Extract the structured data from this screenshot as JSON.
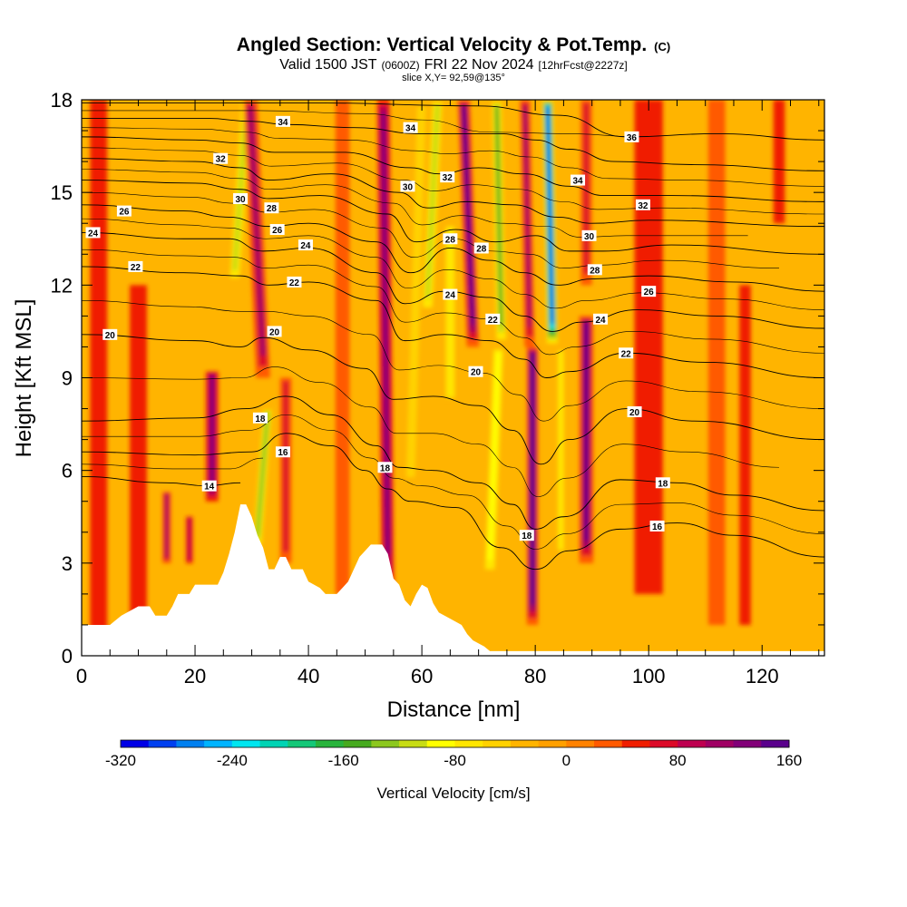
{
  "header": {
    "title": "Angled Section: Vertical Velocity & Pot.Temp.",
    "title_suffix": "(C)",
    "valid_prefix": "Valid 1500 JST",
    "valid_utc": "(0600Z)",
    "valid_date": "FRI 22 Nov 2024",
    "forecast": "[12hrFcst@2227z]",
    "slice": "slice X,Y= 92,59@135°"
  },
  "chart_data": {
    "type": "heatmap",
    "xlabel": "Distance [nm]",
    "ylabel": "Height [Kft MSL]",
    "xlim": [
      0,
      131
    ],
    "ylim": [
      0,
      18
    ],
    "x_ticks": [
      0,
      20,
      40,
      60,
      80,
      100,
      120
    ],
    "y_ticks": [
      0,
      3,
      6,
      9,
      12,
      15,
      18
    ],
    "colorbar": {
      "label": "Vertical Velocity [cm/s]",
      "min": -320,
      "max": 180,
      "step": 20,
      "tick_values": [
        -320,
        -240,
        -160,
        -80,
        0,
        80,
        160
      ],
      "colors": [
        "#0000e6",
        "#0040f0",
        "#0080f0",
        "#00b4ff",
        "#00e6f0",
        "#00d4b4",
        "#14c878",
        "#28b43c",
        "#46aa1e",
        "#8cc81e",
        "#c8dc14",
        "#ffff00",
        "#ffe600",
        "#ffd200",
        "#ffb400",
        "#ffa000",
        "#ff8200",
        "#ff5a00",
        "#f01e00",
        "#dc0a28",
        "#be0050",
        "#a00064",
        "#820078",
        "#5a008c"
      ]
    },
    "terrain_profile": [
      [
        0,
        1
      ],
      [
        5,
        1
      ],
      [
        7,
        1.3
      ],
      [
        10,
        1.6
      ],
      [
        12,
        1.6
      ],
      [
        13,
        1.3
      ],
      [
        15,
        1.3
      ],
      [
        16,
        1.6
      ],
      [
        17,
        2
      ],
      [
        19,
        2
      ],
      [
        20,
        2.3
      ],
      [
        24,
        2.3
      ],
      [
        25,
        2.7
      ],
      [
        26,
        3.3
      ],
      [
        27,
        4
      ],
      [
        28,
        4.9
      ],
      [
        29,
        4.9
      ],
      [
        30,
        4.5
      ],
      [
        31,
        3.9
      ],
      [
        32,
        3.5
      ],
      [
        33,
        2.8
      ],
      [
        34,
        2.8
      ],
      [
        35,
        3.2
      ],
      [
        36,
        3.2
      ],
      [
        37,
        2.8
      ],
      [
        39,
        2.8
      ],
      [
        40,
        2.4
      ],
      [
        42,
        2.2
      ],
      [
        43,
        2
      ],
      [
        45,
        2
      ],
      [
        46,
        2.2
      ],
      [
        47,
        2.4
      ],
      [
        48,
        2.8
      ],
      [
        49,
        3.2
      ],
      [
        50,
        3.4
      ],
      [
        51,
        3.6
      ],
      [
        53,
        3.6
      ],
      [
        54,
        3.3
      ],
      [
        55,
        2.5
      ],
      [
        56,
        2.3
      ],
      [
        57,
        1.8
      ],
      [
        58,
        1.6
      ],
      [
        59,
        2
      ],
      [
        60,
        2.3
      ],
      [
        61,
        2.2
      ],
      [
        62,
        1.7
      ],
      [
        63,
        1.4
      ],
      [
        65,
        1.2
      ],
      [
        67,
        1
      ],
      [
        68,
        0.7
      ],
      [
        69,
        0.5
      ],
      [
        71,
        0.3
      ],
      [
        72,
        0.15
      ],
      [
        131,
        0.15
      ]
    ],
    "velocity_features": [
      {
        "x": 3,
        "width": 3,
        "y_low": 0.5,
        "y_high": 18,
        "value": 40
      },
      {
        "x": 10,
        "width": 3,
        "y_low": 1.2,
        "y_high": 12,
        "value": 40
      },
      {
        "x": 15,
        "width": 1.5,
        "y_low": 3,
        "y_high": 5.3,
        "value": 100
      },
      {
        "x": 19,
        "width": 1.2,
        "y_low": 3,
        "y_high": 4.5,
        "value": 80
      },
      {
        "x": 23,
        "width": 2.2,
        "y_low": 5,
        "y_high": 9.2,
        "value": 120
      },
      {
        "x": 27,
        "width": 2.5,
        "y_low": 12,
        "y_high": 18,
        "value": -120,
        "slant": 0.35
      },
      {
        "x": 31,
        "width": 2,
        "y_low": 3.5,
        "y_high": 8,
        "value": -140,
        "slant": 0.4
      },
      {
        "x": 32,
        "width": 2.5,
        "y_low": 9,
        "y_high": 18,
        "value": 100,
        "slant": -0.25
      },
      {
        "x": 36,
        "width": 2,
        "y_low": 3,
        "y_high": 9,
        "value": 60
      },
      {
        "x": 46,
        "width": 2.5,
        "y_low": 2,
        "y_high": 18,
        "value": 20
      },
      {
        "x": 54,
        "width": 2.2,
        "y_low": 2,
        "y_high": 18,
        "value": 120,
        "slant": -0.05
      },
      {
        "x": 58,
        "width": 3,
        "y_low": 5,
        "y_high": 18,
        "value": -60,
        "slant": 0.15
      },
      {
        "x": 61,
        "width": 2.5,
        "y_low": 11,
        "y_high": 18,
        "value": -120,
        "slant": 0.25
      },
      {
        "x": 65,
        "width": 3,
        "y_low": 8,
        "y_high": 14,
        "value": -80
      },
      {
        "x": 69,
        "width": 2.2,
        "y_low": 10,
        "y_high": 18,
        "value": 140,
        "slant": -0.2
      },
      {
        "x": 72,
        "width": 2.5,
        "y_low": 2.5,
        "y_high": 10,
        "value": -100,
        "slant": 0.2
      },
      {
        "x": 74,
        "width": 2.2,
        "y_low": 10,
        "y_high": 18,
        "value": -160,
        "slant": -0.1
      },
      {
        "x": 79.5,
        "width": 2,
        "y_low": 1,
        "y_high": 10,
        "value": 180
      },
      {
        "x": 79,
        "width": 1.8,
        "y_low": 10,
        "y_high": 18,
        "value": 100,
        "slant": -0.1
      },
      {
        "x": 83,
        "width": 2.2,
        "y_low": 10,
        "y_high": 18,
        "value": -320,
        "slant": -0.1
      },
      {
        "x": 84.5,
        "width": 2,
        "y_low": 3,
        "y_high": 10,
        "value": -80
      },
      {
        "x": 89,
        "width": 2.5,
        "y_low": 3,
        "y_high": 11,
        "value": 140
      },
      {
        "x": 89,
        "width": 2,
        "y_low": 12,
        "y_high": 18,
        "value": 60
      },
      {
        "x": 100,
        "width": 5,
        "y_low": 2,
        "y_high": 18,
        "value": 40
      },
      {
        "x": 112,
        "width": 3,
        "y_low": 1,
        "y_high": 18,
        "value": 30
      },
      {
        "x": 117,
        "width": 2,
        "y_low": 1,
        "y_high": 12,
        "value": 40
      },
      {
        "x": 123,
        "width": 2,
        "y_low": 14,
        "y_high": 18,
        "value": 40
      }
    ],
    "isentropes": [
      {
        "theta": 14,
        "points": [
          [
            0,
            5.8
          ],
          [
            15,
            5.6
          ],
          [
            22,
            5.5
          ],
          [
            28,
            5.6
          ]
        ]
      },
      {
        "theta": 16,
        "points": [
          [
            0,
            6.6
          ],
          [
            20,
            6.5
          ],
          [
            30,
            6.6
          ],
          [
            36,
            7.2
          ],
          [
            44,
            6.8
          ],
          [
            50,
            6
          ],
          [
            54,
            5.4
          ],
          [
            58,
            5
          ],
          [
            66,
            4.8
          ],
          [
            74,
            3.5
          ],
          [
            80,
            2.8
          ],
          [
            86,
            3.4
          ],
          [
            95,
            4.1
          ],
          [
            105,
            4.3
          ],
          [
            115,
            3.9
          ],
          [
            131,
            3.2
          ]
        ]
      },
      {
        "theta": 18,
        "points": [
          [
            0,
            7.6
          ],
          [
            20,
            7.7
          ],
          [
            29,
            8
          ],
          [
            36,
            8.4
          ],
          [
            44,
            7.8
          ],
          [
            52,
            6.8
          ],
          [
            56,
            6.1
          ],
          [
            62,
            6
          ],
          [
            70,
            5.6
          ],
          [
            76,
            4.9
          ],
          [
            80,
            4.1
          ],
          [
            85,
            4.5
          ],
          [
            95,
            5.7
          ],
          [
            105,
            5.6
          ],
          [
            115,
            5.2
          ],
          [
            131,
            4.7
          ]
        ]
      },
      {
        "theta": 20,
        "points": [
          [
            0,
            10.4
          ],
          [
            20,
            10.2
          ],
          [
            28,
            10
          ],
          [
            32,
            10.3
          ],
          [
            40,
            9.9
          ],
          [
            50,
            9.3
          ],
          [
            55,
            8.3
          ],
          [
            62,
            8.4
          ],
          [
            70,
            8.1
          ],
          [
            76,
            7.3
          ],
          [
            81,
            6.2
          ],
          [
            86,
            7
          ],
          [
            96,
            8
          ],
          [
            108,
            7.6
          ],
          [
            131,
            7
          ]
        ]
      },
      {
        "theta": 22,
        "points": [
          [
            0,
            12.6
          ],
          [
            18,
            12.4
          ],
          [
            28,
            12.3
          ],
          [
            33,
            12
          ],
          [
            40,
            12.1
          ],
          [
            52,
            11.5
          ],
          [
            57,
            10.2
          ],
          [
            64,
            10.4
          ],
          [
            72,
            10.2
          ],
          [
            78,
            9.6
          ],
          [
            82,
            9
          ],
          [
            86,
            9.2
          ],
          [
            96,
            9.8
          ],
          [
            110,
            9.5
          ],
          [
            131,
            9
          ]
        ]
      },
      {
        "theta": 24,
        "points": [
          [
            0,
            13.7
          ],
          [
            18,
            13.5
          ],
          [
            26,
            13.5
          ],
          [
            32,
            13.1
          ],
          [
            40,
            13.2
          ],
          [
            52,
            12.4
          ],
          [
            57,
            11.4
          ],
          [
            64,
            11.8
          ],
          [
            72,
            11.6
          ],
          [
            78,
            11
          ],
          [
            83,
            10.5
          ],
          [
            88,
            10.8
          ],
          [
            98,
            11.2
          ],
          [
            112,
            11
          ],
          [
            131,
            10.6
          ]
        ]
      },
      {
        "theta": 26,
        "points": [
          [
            0,
            14.6
          ],
          [
            18,
            14.4
          ],
          [
            26,
            14.2
          ],
          [
            33,
            13.9
          ],
          [
            40,
            14
          ],
          [
            52,
            13.4
          ],
          [
            58,
            12.4
          ],
          [
            65,
            13.2
          ],
          [
            72,
            12.8
          ],
          [
            78,
            12.4
          ],
          [
            84,
            12
          ],
          [
            90,
            12.2
          ],
          [
            100,
            12.3
          ],
          [
            115,
            12.1
          ],
          [
            131,
            11.8
          ]
        ]
      },
      {
        "theta": 28,
        "points": [
          [
            0,
            15.4
          ],
          [
            20,
            15.3
          ],
          [
            28,
            15.1
          ],
          [
            33,
            14.8
          ],
          [
            42,
            14.9
          ],
          [
            54,
            14.3
          ],
          [
            59,
            13.4
          ],
          [
            66,
            13.8
          ],
          [
            73,
            13.4
          ],
          [
            80,
            13.6
          ],
          [
            86,
            13.1
          ],
          [
            92,
            13.1
          ],
          [
            104,
            13.3
          ],
          [
            131,
            13
          ]
        ]
      },
      {
        "theta": 30,
        "points": [
          [
            0,
            16.1
          ],
          [
            20,
            16
          ],
          [
            28,
            15.8
          ],
          [
            33,
            15.4
          ],
          [
            44,
            15.6
          ],
          [
            56,
            15
          ],
          [
            61,
            14.5
          ],
          [
            68,
            14.7
          ],
          [
            76,
            14.6
          ],
          [
            84,
            14.2
          ],
          [
            90,
            14
          ],
          [
            100,
            14.1
          ],
          [
            131,
            13.9
          ]
        ]
      },
      {
        "theta": 32,
        "points": [
          [
            0,
            16.8
          ],
          [
            20,
            16.7
          ],
          [
            28,
            16.6
          ],
          [
            34,
            16.3
          ],
          [
            46,
            16.3
          ],
          [
            58,
            15.8
          ],
          [
            63,
            15.6
          ],
          [
            70,
            15.8
          ],
          [
            78,
            15.6
          ],
          [
            86,
            15.2
          ],
          [
            92,
            14.9
          ],
          [
            104,
            14.9
          ],
          [
            131,
            14.7
          ]
        ]
      },
      {
        "theta": 34,
        "points": [
          [
            0,
            17.4
          ],
          [
            22,
            17.4
          ],
          [
            30,
            17.3
          ],
          [
            36,
            17.2
          ],
          [
            48,
            17.1
          ],
          [
            60,
            16.9
          ],
          [
            66,
            16.9
          ],
          [
            74,
            16.9
          ],
          [
            80,
            16.7
          ],
          [
            86,
            16.4
          ],
          [
            94,
            16
          ],
          [
            108,
            15.9
          ],
          [
            131,
            15.7
          ]
        ]
      },
      {
        "theta": 36,
        "points": [
          [
            0,
            17.9
          ],
          [
            40,
            17.9
          ],
          [
            70,
            17.8
          ],
          [
            84,
            17.5
          ],
          [
            96,
            16.8
          ],
          [
            112,
            16.9
          ],
          [
            131,
            16.7
          ]
        ]
      }
    ],
    "contour_labels": [
      {
        "text": "14",
        "x": 22.5,
        "y": 5.5
      },
      {
        "text": "16",
        "x": 35.5,
        "y": 6.6
      },
      {
        "text": "16",
        "x": 101.5,
        "y": 4.2
      },
      {
        "text": "18",
        "x": 31.5,
        "y": 7.7
      },
      {
        "text": "18",
        "x": 53.5,
        "y": 6.1
      },
      {
        "text": "18",
        "x": 78.5,
        "y": 3.9
      },
      {
        "text": "18",
        "x": 102.5,
        "y": 5.6
      },
      {
        "text": "20",
        "x": 5,
        "y": 10.4
      },
      {
        "text": "20",
        "x": 34,
        "y": 10.5
      },
      {
        "text": "20",
        "x": 69.5,
        "y": 9.2
      },
      {
        "text": "20",
        "x": 97.5,
        "y": 7.9
      },
      {
        "text": "22",
        "x": 9.5,
        "y": 12.6
      },
      {
        "text": "22",
        "x": 37.5,
        "y": 12.1
      },
      {
        "text": "22",
        "x": 72.5,
        "y": 10.9
      },
      {
        "text": "22",
        "x": 96,
        "y": 9.8
      },
      {
        "text": "24",
        "x": 2,
        "y": 13.7
      },
      {
        "text": "24",
        "x": 39.5,
        "y": 13.3
      },
      {
        "text": "24",
        "x": 65,
        "y": 11.7
      },
      {
        "text": "24",
        "x": 91.5,
        "y": 10.9
      },
      {
        "text": "26",
        "x": 7.5,
        "y": 14.4
      },
      {
        "text": "26",
        "x": 34.5,
        "y": 13.8
      },
      {
        "text": "26",
        "x": 100,
        "y": 11.8
      },
      {
        "text": "28",
        "x": 33.5,
        "y": 14.5
      },
      {
        "text": "28",
        "x": 65,
        "y": 13.5
      },
      {
        "text": "28",
        "x": 70.5,
        "y": 13.2
      },
      {
        "text": "28",
        "x": 90.5,
        "y": 12.5
      },
      {
        "text": "30",
        "x": 28,
        "y": 14.8
      },
      {
        "text": "30",
        "x": 57.5,
        "y": 15.2
      },
      {
        "text": "30",
        "x": 89.5,
        "y": 13.6
      },
      {
        "text": "32",
        "x": 24.5,
        "y": 16.1
      },
      {
        "text": "32",
        "x": 64.5,
        "y": 15.5
      },
      {
        "text": "32",
        "x": 99,
        "y": 14.6
      },
      {
        "text": "34",
        "x": 35.5,
        "y": 17.3
      },
      {
        "text": "34",
        "x": 58,
        "y": 17.1
      },
      {
        "text": "34",
        "x": 87.5,
        "y": 15.4
      },
      {
        "text": "36",
        "x": 97,
        "y": 16.8
      }
    ]
  }
}
